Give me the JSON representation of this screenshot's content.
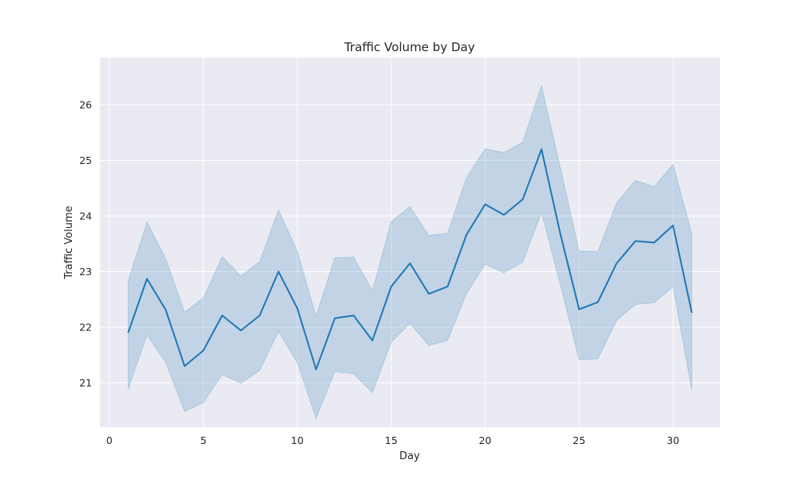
{
  "chart_data": {
    "type": "line",
    "title": "Traffic Volume by Day",
    "xlabel": "Day",
    "ylabel": "Traffic Volume",
    "xlim": [
      -0.5,
      32.5
    ],
    "ylim": [
      20.2,
      26.85
    ],
    "xticks": [
      0,
      5,
      10,
      15,
      20,
      25,
      30
    ],
    "yticks": [
      21,
      22,
      23,
      24,
      25,
      26
    ],
    "grid": true,
    "colors": {
      "line": "#1f77b4",
      "band": "#1f77b4",
      "background": "#eaeaf2",
      "grid": "#ffffff"
    },
    "series": [
      {
        "x": [
          1,
          2,
          3,
          4,
          5,
          6,
          7,
          8,
          9,
          10,
          11,
          12,
          13,
          14,
          15,
          16,
          17,
          18,
          19,
          20,
          21,
          22,
          23,
          24,
          25,
          26,
          27,
          28,
          29,
          30,
          31
        ],
        "values": [
          21.9,
          22.87,
          22.31,
          21.3,
          21.58,
          22.21,
          21.94,
          22.21,
          23.0,
          22.34,
          21.24,
          22.16,
          22.21,
          21.76,
          22.73,
          23.15,
          22.6,
          22.73,
          23.66,
          24.21,
          24.02,
          24.3,
          25.2,
          23.68,
          22.32,
          22.45,
          23.15,
          23.55,
          23.52,
          23.83,
          22.26
        ],
        "lower": [
          20.88,
          21.86,
          21.36,
          20.48,
          20.64,
          21.15,
          20.99,
          21.22,
          21.92,
          21.36,
          20.36,
          21.2,
          21.16,
          20.82,
          21.73,
          22.07,
          21.67,
          21.76,
          22.6,
          23.13,
          22.98,
          23.17,
          24.06,
          22.77,
          21.41,
          21.43,
          22.12,
          22.41,
          22.44,
          22.73,
          20.86
        ],
        "upper": [
          22.83,
          23.89,
          23.23,
          22.27,
          22.53,
          23.27,
          22.92,
          23.18,
          24.11,
          23.37,
          22.2,
          23.25,
          23.26,
          22.66,
          23.9,
          24.17,
          23.65,
          23.69,
          24.69,
          25.21,
          25.14,
          25.33,
          26.35,
          24.87,
          23.37,
          23.36,
          24.24,
          24.64,
          24.53,
          24.93,
          23.68
        ]
      }
    ]
  }
}
